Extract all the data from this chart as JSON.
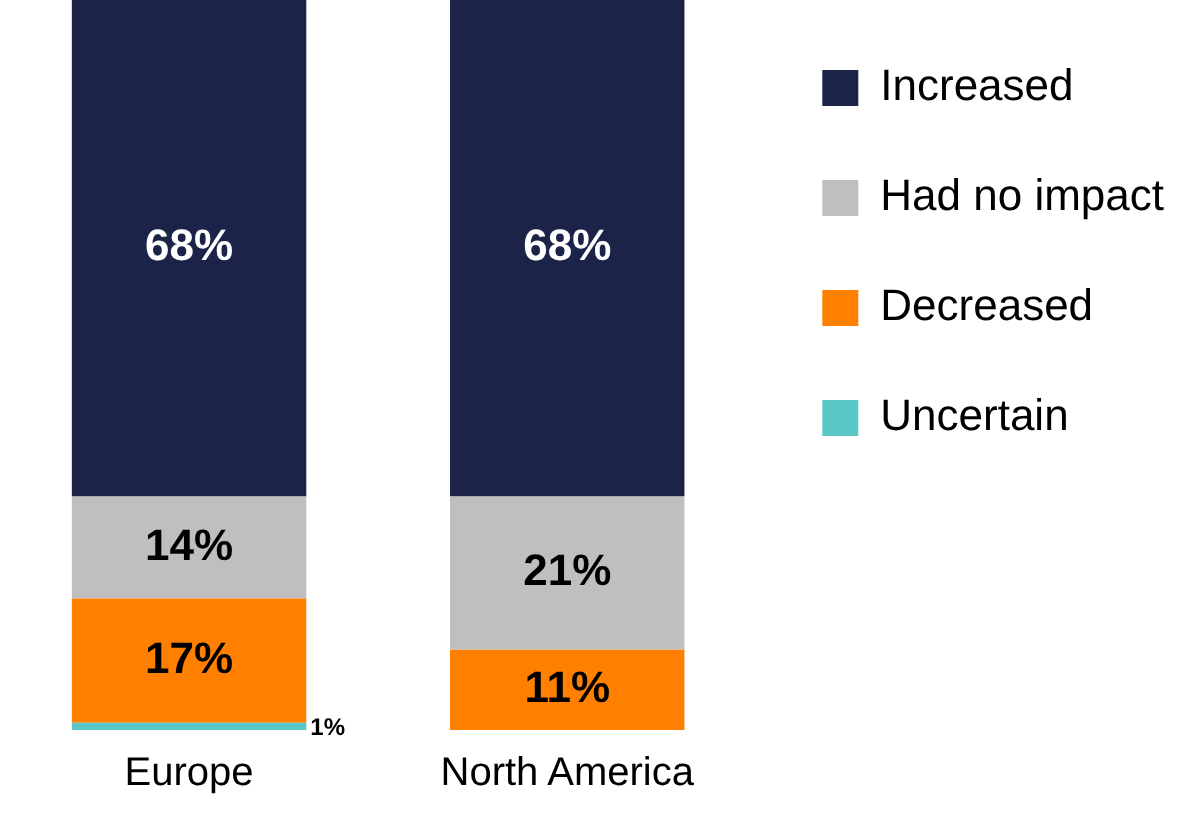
{
  "chart_data": {
    "type": "bar",
    "stacked": true,
    "categories": [
      "Europe",
      "North America"
    ],
    "tick_labels": "x",
    "grid": false,
    "legend": "right",
    "series": [
      {
        "name": "Uncertain",
        "color": "#5bc8c8",
        "values": [
          1,
          null
        ],
        "value_labels": [
          "1%",
          null
        ]
      },
      {
        "name": "Decreased",
        "color": "#ff8000",
        "values": [
          17,
          11
        ],
        "value_labels": [
          "17%",
          "11%"
        ]
      },
      {
        "name": "Had no impact",
        "color": "#bfbfbf",
        "values": [
          14,
          21
        ],
        "value_labels": [
          "14%",
          "21%"
        ]
      },
      {
        "name": "Increased",
        "color": "#1b2448",
        "values": [
          68,
          68
        ],
        "value_labels": [
          "68%",
          "68%"
        ]
      }
    ]
  }
}
